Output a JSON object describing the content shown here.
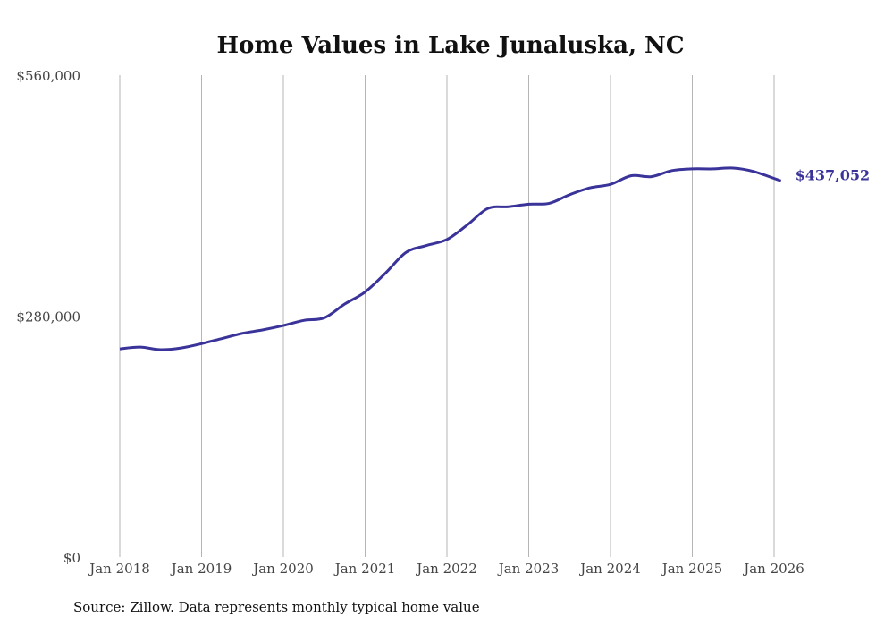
{
  "chart_data": {
    "type": "line",
    "title": "Home Values in Lake Junaluska, NC",
    "xlabel": "",
    "ylabel": "",
    "source": "Source: Zillow. Data represents monthly typical home value",
    "ylim": [
      0,
      560000
    ],
    "y_ticks": [
      0,
      280000,
      560000
    ],
    "y_tick_labels": [
      "$0",
      "$280,000",
      "$560,000"
    ],
    "x_tick_labels": [
      "Jan 2018",
      "Jan 2019",
      "Jan 2020",
      "Jan 2021",
      "Jan 2022",
      "Jan 2023",
      "Jan 2024",
      "Jan 2025",
      "Jan 2026"
    ],
    "grid": "vertical",
    "line_color": "#3a3399",
    "end_label": "$437,052",
    "series": [
      {
        "name": "Typical home value",
        "x": [
          "2018-01",
          "2018-04",
          "2018-07",
          "2018-10",
          "2019-01",
          "2019-04",
          "2019-07",
          "2019-10",
          "2020-01",
          "2020-04",
          "2020-07",
          "2020-10",
          "2021-01",
          "2021-04",
          "2021-07",
          "2021-10",
          "2022-01",
          "2022-04",
          "2022-07",
          "2022-10",
          "2023-01",
          "2023-04",
          "2023-07",
          "2023-10",
          "2024-01",
          "2024-04",
          "2024-07",
          "2024-10",
          "2025-01",
          "2025-04",
          "2025-07",
          "2025-10",
          "2026-02"
        ],
        "months_since_jan_2018": [
          0,
          3,
          6,
          9,
          12,
          15,
          18,
          21,
          24,
          27,
          30,
          33,
          36,
          39,
          42,
          45,
          48,
          51,
          54,
          57,
          60,
          63,
          66,
          69,
          72,
          75,
          78,
          81,
          84,
          87,
          90,
          93,
          97
        ],
        "values": [
          242000,
          244000,
          241000,
          243000,
          248000,
          254000,
          260000,
          264000,
          269000,
          275000,
          278000,
          294000,
          308000,
          330000,
          354000,
          362000,
          369000,
          386000,
          405000,
          407000,
          410000,
          411000,
          421000,
          429000,
          433000,
          443000,
          442000,
          449000,
          451000,
          451000,
          452000,
          448000,
          437052
        ]
      }
    ]
  }
}
